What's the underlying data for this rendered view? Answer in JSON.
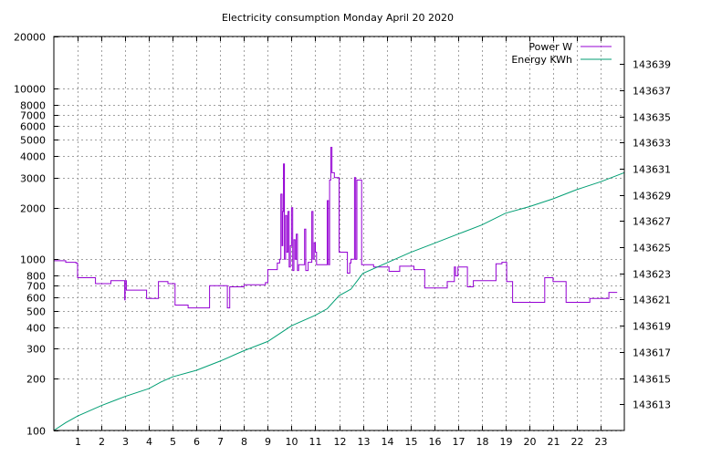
{
  "chart_data": {
    "type": "line",
    "title": "Electricity consumption Monday April 20 2020",
    "xlabel": "",
    "ylabel": "",
    "y2label": "",
    "x_ticks": [
      "1",
      "2",
      "3",
      "4",
      "5",
      "6",
      "7",
      "8",
      "9",
      "10",
      "11",
      "12",
      "13",
      "14",
      "15",
      "16",
      "17",
      "18",
      "19",
      "20",
      "21",
      "22",
      "23"
    ],
    "xlim": [
      0,
      24
    ],
    "y_left": {
      "scale": "log",
      "lim": [
        100,
        20000
      ],
      "ticks": [
        "100",
        "200",
        "300",
        "400",
        "500",
        "600",
        "700",
        "800",
        "1000",
        "2000",
        "3000",
        "4000",
        "5000",
        "6000",
        "7000",
        "8000",
        "10000",
        "20000"
      ]
    },
    "y_right": {
      "scale": "linear",
      "lim": [
        143611,
        143641.1
      ],
      "ticks": [
        "143613",
        "143615",
        "143617",
        "143619",
        "143621",
        "143623",
        "143625",
        "143627",
        "143629",
        "143631",
        "143633",
        "143635",
        "143637",
        "143639"
      ]
    },
    "grid": true,
    "legend_position": "top-right",
    "colors": {
      "power": "#9400d3",
      "energy": "#009e73"
    },
    "series": [
      {
        "name": "Power W",
        "axis": "left",
        "step": true,
        "points": [
          [
            0,
            980
          ],
          [
            0.5,
            960
          ],
          [
            0.93,
            950
          ],
          [
            1.0,
            780
          ],
          [
            1.7,
            780
          ],
          [
            1.75,
            720
          ],
          [
            2.35,
            720
          ],
          [
            2.4,
            750
          ],
          [
            2.95,
            750
          ],
          [
            2.98,
            580
          ],
          [
            3.0,
            750
          ],
          [
            3.05,
            660
          ],
          [
            3.85,
            660
          ],
          [
            3.9,
            590
          ],
          [
            4.35,
            590
          ],
          [
            4.4,
            740
          ],
          [
            4.8,
            720
          ],
          [
            5.05,
            720
          ],
          [
            5.1,
            540
          ],
          [
            5.6,
            540
          ],
          [
            5.65,
            520
          ],
          [
            6.5,
            520
          ],
          [
            6.55,
            700
          ],
          [
            7.25,
            700
          ],
          [
            7.3,
            520
          ],
          [
            7.35,
            520
          ],
          [
            7.4,
            690
          ],
          [
            7.95,
            690
          ],
          [
            8.0,
            710
          ],
          [
            8.85,
            710
          ],
          [
            8.9,
            730
          ],
          [
            9.0,
            870
          ],
          [
            9.4,
            950
          ],
          [
            9.5,
            1000
          ],
          [
            9.55,
            2400
          ],
          [
            9.6,
            1200
          ],
          [
            9.63,
            1900
          ],
          [
            9.66,
            3600
          ],
          [
            9.7,
            1000
          ],
          [
            9.75,
            1800
          ],
          [
            9.8,
            1100
          ],
          [
            9.85,
            1900
          ],
          [
            9.9,
            900
          ],
          [
            9.95,
            1200
          ],
          [
            10.0,
            2000
          ],
          [
            10.05,
            860
          ],
          [
            10.1,
            1300
          ],
          [
            10.15,
            1000
          ],
          [
            10.2,
            1400
          ],
          [
            10.25,
            860
          ],
          [
            10.3,
            930
          ],
          [
            10.5,
            930
          ],
          [
            10.55,
            1500
          ],
          [
            10.6,
            860
          ],
          [
            10.7,
            960
          ],
          [
            10.85,
            1900
          ],
          [
            10.9,
            1000
          ],
          [
            10.95,
            1250
          ],
          [
            11.0,
            1100
          ],
          [
            11.05,
            930
          ],
          [
            11.45,
            930
          ],
          [
            11.5,
            2200
          ],
          [
            11.55,
            930
          ],
          [
            11.6,
            2900
          ],
          [
            11.65,
            4500
          ],
          [
            11.7,
            3200
          ],
          [
            11.8,
            3000
          ],
          [
            11.95,
            3000
          ],
          [
            12.0,
            1100
          ],
          [
            12.3,
            1100
          ],
          [
            12.35,
            830
          ],
          [
            12.45,
            950
          ],
          [
            12.5,
            1000
          ],
          [
            12.65,
            3000
          ],
          [
            12.7,
            1000
          ],
          [
            12.75,
            2900
          ],
          [
            12.9,
            2900
          ],
          [
            12.95,
            930
          ],
          [
            13.4,
            930
          ],
          [
            13.45,
            900
          ],
          [
            14.05,
            900
          ],
          [
            14.1,
            850
          ],
          [
            14.5,
            850
          ],
          [
            14.55,
            910
          ],
          [
            15.1,
            910
          ],
          [
            15.15,
            870
          ],
          [
            15.55,
            870
          ],
          [
            15.6,
            680
          ],
          [
            16.5,
            680
          ],
          [
            16.55,
            740
          ],
          [
            16.8,
            740
          ],
          [
            16.85,
            900
          ],
          [
            16.9,
            800
          ],
          [
            17.0,
            900
          ],
          [
            17.35,
            900
          ],
          [
            17.4,
            690
          ],
          [
            17.6,
            690
          ],
          [
            17.65,
            750
          ],
          [
            18.55,
            750
          ],
          [
            18.6,
            940
          ],
          [
            18.85,
            960
          ],
          [
            19.0,
            960
          ],
          [
            19.05,
            740
          ],
          [
            19.2,
            740
          ],
          [
            19.3,
            560
          ],
          [
            20.6,
            560
          ],
          [
            20.65,
            780
          ],
          [
            20.95,
            780
          ],
          [
            21.0,
            740
          ],
          [
            21.5,
            740
          ],
          [
            21.55,
            560
          ],
          [
            22.5,
            560
          ],
          [
            22.55,
            590
          ],
          [
            23.3,
            590
          ],
          [
            23.35,
            640
          ],
          [
            23.7,
            640
          ]
        ]
      },
      {
        "name": "Energy KWh",
        "axis": "right",
        "points": [
          [
            0,
            143611.0
          ],
          [
            0.5,
            143611.6
          ],
          [
            1,
            143612.1
          ],
          [
            2,
            143612.9
          ],
          [
            3,
            143613.6
          ],
          [
            4,
            143614.2
          ],
          [
            4.5,
            143614.7
          ],
          [
            5,
            143615.1
          ],
          [
            6,
            143615.6
          ],
          [
            7,
            143616.3
          ],
          [
            8,
            143617.1
          ],
          [
            9,
            143617.8
          ],
          [
            9.5,
            143618.4
          ],
          [
            10,
            143619.0
          ],
          [
            11,
            143619.8
          ],
          [
            11.5,
            143620.3
          ],
          [
            12,
            143621.3
          ],
          [
            12.5,
            143621.8
          ],
          [
            13,
            143623.0
          ],
          [
            14,
            143623.8
          ],
          [
            15,
            143624.6
          ],
          [
            16,
            143625.3
          ],
          [
            17,
            143626.0
          ],
          [
            18,
            143626.7
          ],
          [
            19,
            143627.6
          ],
          [
            20,
            143628.1
          ],
          [
            21,
            143628.7
          ],
          [
            22,
            143629.4
          ],
          [
            23,
            143630.0
          ],
          [
            24,
            143630.7
          ]
        ]
      }
    ]
  }
}
